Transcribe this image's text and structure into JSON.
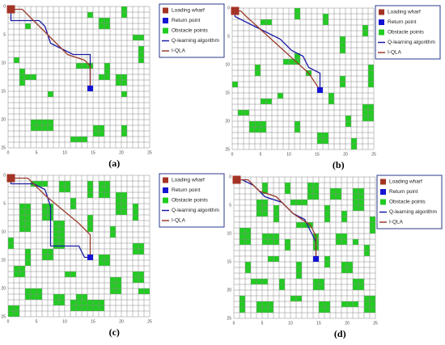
{
  "legend": {
    "items": [
      {
        "label": "Loading wharf",
        "color": "#a33325",
        "kind": "square"
      },
      {
        "label": "Return point",
        "color": "#1414d2",
        "kind": "square"
      },
      {
        "label": "Obstacle points",
        "color": "#22cc22",
        "kind": "square"
      },
      {
        "label": "Q-learning algorithm",
        "color": "#1a1aa6",
        "kind": "line"
      },
      {
        "label": "I-QLA",
        "color": "#9a3a2a",
        "kind": "line"
      }
    ]
  },
  "panels": [
    {
      "label": "(a)",
      "xticks": [
        0,
        5,
        10,
        15,
        20,
        25
      ],
      "yticks": [
        0,
        5,
        10,
        15,
        20,
        25
      ],
      "wharf": [
        0,
        0
      ],
      "return": [
        14,
        14
      ],
      "obstacles": [
        [
          16,
          2,
          2,
          2
        ],
        [
          20,
          0,
          1,
          2
        ],
        [
          2,
          11,
          1,
          3
        ],
        [
          3,
          12,
          2,
          1
        ],
        [
          22,
          5,
          2,
          1
        ],
        [
          23,
          7,
          1,
          3
        ],
        [
          16,
          12,
          2,
          1
        ],
        [
          19,
          12,
          2,
          2
        ],
        [
          12,
          10,
          3,
          1
        ],
        [
          17,
          10,
          1,
          3
        ],
        [
          4,
          20,
          4,
          2
        ],
        [
          11,
          23,
          3,
          1
        ],
        [
          15,
          21,
          2,
          2
        ],
        [
          20,
          21,
          1,
          2
        ],
        [
          1,
          9,
          1,
          1
        ],
        [
          7,
          15,
          1,
          1
        ],
        [
          20,
          15,
          1,
          1
        ],
        [
          14,
          1,
          1,
          1
        ],
        [
          3,
          3,
          1,
          1
        ]
      ],
      "q_path": [
        [
          0.5,
          0.5
        ],
        [
          0.5,
          2.5
        ],
        [
          5.5,
          2.5
        ],
        [
          6.5,
          3.5
        ],
        [
          7.5,
          6.5
        ],
        [
          9.5,
          7.5
        ],
        [
          11.5,
          8.5
        ],
        [
          14.5,
          8.5
        ],
        [
          14.5,
          14.5
        ]
      ],
      "iqla_path": [
        [
          0.5,
          0.5
        ],
        [
          2.5,
          0.5
        ],
        [
          3.5,
          1.5
        ],
        [
          6.5,
          4.5
        ],
        [
          10.5,
          8.5
        ],
        [
          13.5,
          9.5
        ],
        [
          14.5,
          10.5
        ],
        [
          14.5,
          14.5
        ]
      ]
    },
    {
      "label": "(b)",
      "xticks": [
        0,
        5,
        10,
        15,
        20,
        25
      ],
      "yticks": [
        0,
        5,
        10,
        15,
        20,
        25
      ],
      "wharf": [
        0,
        0
      ],
      "return": [
        15,
        14
      ],
      "obstacles": [
        [
          5,
          2,
          2,
          1
        ],
        [
          11,
          0,
          1,
          2
        ],
        [
          16,
          1,
          1,
          2
        ],
        [
          19,
          5,
          1,
          3
        ],
        [
          23,
          3,
          1,
          2
        ],
        [
          11,
          8,
          1,
          1
        ],
        [
          4,
          10,
          1,
          2
        ],
        [
          9,
          9,
          3,
          1
        ],
        [
          13,
          11,
          1,
          1
        ],
        [
          19,
          12,
          1,
          2
        ],
        [
          24,
          10,
          1,
          4
        ],
        [
          1,
          18,
          2,
          1
        ],
        [
          5,
          16,
          2,
          1
        ],
        [
          3,
          20,
          3,
          2
        ],
        [
          11,
          20,
          1,
          2
        ],
        [
          15,
          22,
          2,
          2
        ],
        [
          23,
          17,
          2,
          3
        ],
        [
          20,
          19,
          1,
          2
        ],
        [
          17,
          15,
          1,
          2
        ],
        [
          0,
          13,
          1,
          1
        ],
        [
          8,
          15,
          1,
          1
        ],
        [
          21,
          23,
          1,
          2
        ]
      ],
      "q_path": [
        [
          0.5,
          0.5
        ],
        [
          0.5,
          1.5
        ],
        [
          4.5,
          3.5
        ],
        [
          8.5,
          5.5
        ],
        [
          10.5,
          7.5
        ],
        [
          12.5,
          8.5
        ],
        [
          13.5,
          10.5
        ],
        [
          15.5,
          11.5
        ],
        [
          15.5,
          14.5
        ]
      ],
      "iqla_path": [
        [
          0.5,
          0.5
        ],
        [
          1.5,
          0.5
        ],
        [
          2.5,
          1.5
        ],
        [
          13.5,
          11.5
        ],
        [
          15.5,
          14.5
        ]
      ]
    },
    {
      "label": "(c)",
      "xticks": [
        0,
        5,
        10,
        15,
        20,
        25
      ],
      "yticks": [
        0,
        5,
        10,
        15,
        20,
        25
      ],
      "wharf": [
        0,
        0
      ],
      "return": [
        14,
        14
      ],
      "obstacles": [
        [
          4,
          1,
          3,
          1
        ],
        [
          9,
          1,
          2,
          2
        ],
        [
          14,
          1,
          1,
          3
        ],
        [
          16,
          1,
          2,
          3
        ],
        [
          2,
          5,
          2,
          5
        ],
        [
          6,
          5,
          2,
          3
        ],
        [
          11,
          4,
          1,
          2
        ],
        [
          8,
          8,
          2,
          5
        ],
        [
          19,
          3,
          2,
          4
        ],
        [
          22,
          5,
          1,
          3
        ],
        [
          14,
          7,
          1,
          3
        ],
        [
          18,
          9,
          1,
          2
        ],
        [
          22,
          12,
          2,
          2
        ],
        [
          0,
          11,
          1,
          2
        ],
        [
          3,
          13,
          1,
          3
        ],
        [
          6,
          13,
          2,
          2
        ],
        [
          16,
          14,
          2,
          2
        ],
        [
          1,
          16,
          2,
          2
        ],
        [
          10,
          17,
          2,
          1
        ],
        [
          18,
          18,
          2,
          3
        ],
        [
          22,
          17,
          2,
          2
        ],
        [
          3,
          20,
          3,
          2
        ],
        [
          12,
          21,
          2,
          1
        ],
        [
          11,
          22,
          6,
          2
        ],
        [
          23,
          20,
          2,
          1
        ],
        [
          0,
          23,
          2,
          2
        ],
        [
          8,
          21,
          2,
          2
        ]
      ],
      "q_path": [
        [
          0.5,
          0.5
        ],
        [
          0.5,
          1.5
        ],
        [
          4.5,
          1.5
        ],
        [
          6.5,
          2.5
        ],
        [
          7.5,
          5.5
        ],
        [
          7.5,
          12.5
        ],
        [
          12.5,
          12.5
        ],
        [
          13.5,
          14.5
        ],
        [
          14.5,
          14.5
        ]
      ],
      "iqla_path": [
        [
          0.5,
          0.5
        ],
        [
          3.5,
          0.5
        ],
        [
          6.5,
          3.5
        ],
        [
          12.5,
          8.5
        ],
        [
          14.5,
          10.5
        ],
        [
          14.5,
          14.5
        ]
      ]
    },
    {
      "label": "(d)",
      "xticks": [
        0,
        5,
        10,
        15,
        20,
        25
      ],
      "yticks": [
        0,
        5,
        10,
        15,
        20,
        25
      ],
      "wharf": [
        0,
        0
      ],
      "return": [
        14,
        14
      ],
      "obstacles": [
        [
          5,
          1,
          1,
          2
        ],
        [
          9,
          1,
          1,
          2
        ],
        [
          13,
          1,
          2,
          3
        ],
        [
          17,
          2,
          2,
          2
        ],
        [
          21,
          2,
          2,
          4
        ],
        [
          4,
          4,
          2,
          3
        ],
        [
          7,
          5,
          1,
          3
        ],
        [
          10,
          4,
          3,
          1
        ],
        [
          16,
          5,
          1,
          3
        ],
        [
          19,
          6,
          1,
          2
        ],
        [
          11,
          8,
          3,
          1
        ],
        [
          24,
          7,
          1,
          3
        ],
        [
          1,
          9,
          2,
          3
        ],
        [
          5,
          10,
          3,
          2
        ],
        [
          9,
          11,
          1,
          2
        ],
        [
          14,
          10,
          1,
          3
        ],
        [
          18,
          10,
          2,
          2
        ],
        [
          21,
          11,
          1,
          1
        ],
        [
          23,
          12,
          1,
          2
        ],
        [
          2,
          15,
          1,
          2
        ],
        [
          6,
          14,
          2,
          1
        ],
        [
          11,
          15,
          1,
          3
        ],
        [
          16,
          14,
          1,
          2
        ],
        [
          19,
          15,
          2,
          2
        ],
        [
          3,
          18,
          3,
          1
        ],
        [
          8,
          18,
          1,
          2
        ],
        [
          14,
          18,
          2,
          2
        ],
        [
          21,
          18,
          2,
          2
        ],
        [
          1,
          21,
          1,
          3
        ],
        [
          4,
          22,
          3,
          2
        ],
        [
          10,
          21,
          2,
          1
        ],
        [
          15,
          22,
          2,
          2
        ],
        [
          19,
          22,
          3,
          1
        ],
        [
          23,
          21,
          2,
          3
        ]
      ],
      "q_path": [
        [
          0.5,
          0.5
        ],
        [
          1.5,
          0.5
        ],
        [
          3.5,
          1.5
        ],
        [
          5.5,
          3.5
        ],
        [
          8.5,
          4.5
        ],
        [
          10.5,
          6.5
        ],
        [
          12.5,
          7.5
        ],
        [
          13.5,
          9.5
        ],
        [
          14.5,
          11.5
        ],
        [
          14.5,
          14.5
        ]
      ],
      "iqla_path": [
        [
          0.5,
          0.5
        ],
        [
          2.5,
          0.5
        ],
        [
          4.5,
          2.5
        ],
        [
          7.5,
          3.5
        ],
        [
          10.5,
          6.5
        ],
        [
          13.5,
          8.5
        ],
        [
          14.5,
          10.5
        ],
        [
          14.5,
          14.5
        ]
      ]
    }
  ]
}
